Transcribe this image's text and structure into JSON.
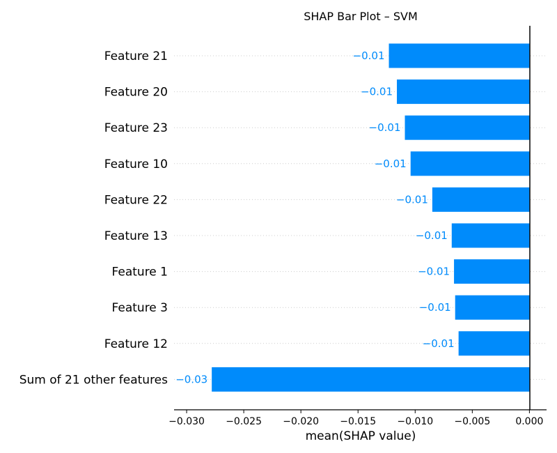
{
  "chart_data": {
    "type": "bar",
    "orientation": "horizontal",
    "title": "SHAP Bar Plot – SVM",
    "xlabel": "mean(SHAP value)",
    "ylabel": "",
    "categories": [
      "Feature 21",
      "Feature 20",
      "Feature 23",
      "Feature 10",
      "Feature 22",
      "Feature 13",
      "Feature 1",
      "Feature 3",
      "Feature 12",
      "Sum of 21 other features"
    ],
    "values": [
      -0.0123,
      -0.0116,
      -0.0109,
      -0.0104,
      -0.0085,
      -0.0068,
      -0.0066,
      -0.0065,
      -0.0062,
      -0.0278
    ],
    "value_labels": [
      "−0.01",
      "−0.01",
      "−0.01",
      "−0.01",
      "−0.01",
      "−0.01",
      "−0.01",
      "−0.01",
      "−0.01",
      "−0.03"
    ],
    "xticks": [
      -0.03,
      -0.025,
      -0.02,
      -0.015,
      -0.01,
      -0.005,
      0.0
    ],
    "xtick_labels": [
      "−0.030",
      "−0.025",
      "−0.020",
      "−0.015",
      "−0.010",
      "−0.005",
      "0.000"
    ],
    "xlim": [
      -0.0311,
      0.0015
    ],
    "bar_color": "#008bfb",
    "grid": "dotted horizontal",
    "legend": "none"
  }
}
